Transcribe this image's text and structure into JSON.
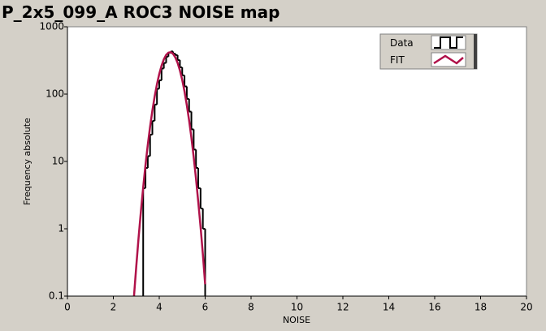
{
  "chart_data": {
    "type": "histogram",
    "title": "P_2x5_099_A ROC3 NOISE map",
    "x_label": "NOISE",
    "y_label": "Frequency absolute",
    "y_scale": "log",
    "xlim": [
      0,
      20
    ],
    "xticks": [
      0,
      2,
      4,
      6,
      8,
      10,
      12,
      14,
      16,
      18,
      20
    ],
    "ylim": [
      0.1,
      1000
    ],
    "yticks": [
      0.1,
      1,
      10,
      100,
      1000
    ],
    "grid": false,
    "legend": "top-right",
    "series": [
      {
        "name": "Data",
        "type": "histogram",
        "color": "#000000",
        "bins": [
          3.3,
          3.4,
          3.5,
          3.6,
          3.7,
          3.8,
          3.9,
          4.0,
          4.1,
          4.2,
          4.3,
          4.4,
          4.5,
          4.6,
          4.7,
          4.8,
          4.9,
          5.0,
          5.1,
          5.2,
          5.3,
          5.4,
          5.5,
          5.6,
          5.7,
          5.8,
          5.9,
          6.0
        ],
        "values": [
          4,
          8,
          12,
          25,
          40,
          70,
          120,
          160,
          240,
          290,
          360,
          410,
          430,
          400,
          380,
          320,
          250,
          190,
          130,
          85,
          55,
          30,
          15,
          8,
          4,
          2,
          1
        ]
      },
      {
        "name": "FIT",
        "type": "line",
        "color": "#b0124a",
        "x": [
          2.9,
          3.0,
          3.1,
          3.2,
          3.3,
          3.4,
          3.5,
          3.6,
          3.7,
          3.8,
          3.9,
          4.0,
          4.1,
          4.2,
          4.3,
          4.4,
          4.5,
          4.6,
          4.7,
          4.8,
          4.9,
          5.0,
          5.1,
          5.2,
          5.3,
          5.4,
          5.5,
          5.6,
          5.7,
          5.8,
          5.9,
          6.0
        ],
        "values": [
          0.1,
          0.28,
          0.74,
          1.8,
          4.1,
          8.8,
          17.5,
          32.6,
          56.7,
          92,
          140,
          199,
          264,
          328,
          381,
          413,
          419,
          397,
          351,
          291,
          225,
          163,
          110,
          69,
          41,
          22.6,
          11.7,
          5.6,
          2.5,
          1.07,
          0.42,
          0.15
        ]
      }
    ]
  }
}
